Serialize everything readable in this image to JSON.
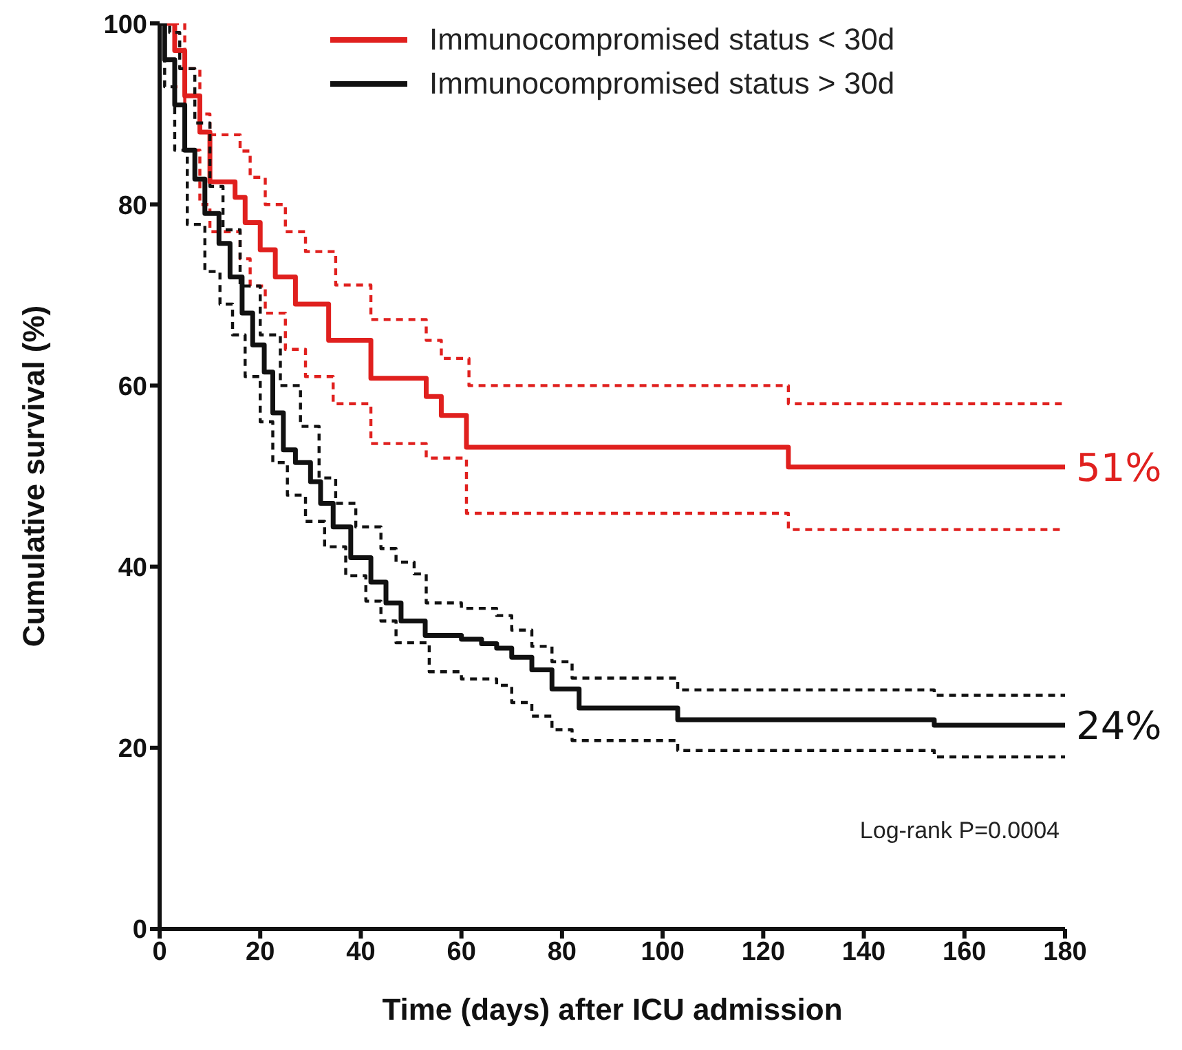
{
  "chart_data": {
    "type": "step",
    "xlabel": "Time (days) after ICU admission",
    "ylabel": "Cumulative survival (%)",
    "xlim": [
      0,
      180
    ],
    "xticks": [
      0,
      20,
      40,
      60,
      80,
      100,
      120,
      140,
      160,
      180
    ],
    "ylim": [
      0,
      100
    ],
    "yticks": [
      0,
      20,
      40,
      60,
      80,
      100
    ],
    "grid": false,
    "legend": "top right",
    "marker": "none",
    "series": [
      {
        "name": "Immunocompromised status < 30d",
        "color": "#e0201e",
        "line_style": "solid",
        "x": [
          0,
          3,
          5,
          8,
          10,
          15,
          17,
          20,
          23,
          27,
          33.6,
          42,
          53,
          56,
          61,
          125,
          180
        ],
        "values": [
          100,
          97,
          92,
          88,
          82.5,
          80.8,
          78,
          75,
          72,
          69,
          65,
          60.8,
          58.8,
          56.7,
          53.2,
          51,
          51
        ]
      },
      {
        "color": "#e0201e",
        "line_style": "dashed",
        "x": [
          0,
          3,
          5,
          8,
          10,
          16,
          18,
          21,
          25,
          29,
          35,
          42,
          53,
          56,
          61.5,
          125,
          180
        ],
        "values": [
          100,
          100,
          95,
          90,
          87.7,
          85.9,
          83,
          80,
          77,
          74.8,
          71.1,
          67.3,
          65,
          63,
          60,
          58,
          58
        ]
      },
      {
        "color": "#e0201e",
        "line_style": "dashed",
        "x": [
          0,
          3,
          5,
          8,
          10,
          16,
          18,
          21,
          25,
          29,
          34.5,
          42,
          53,
          61,
          125,
          180
        ],
        "values": [
          100,
          93,
          86,
          80,
          77,
          74,
          71,
          68,
          64,
          61,
          58,
          53.6,
          52,
          45.9,
          44.1,
          44.1
        ]
      },
      {
        "name": "Immunocompromised status > 30d",
        "color": "#111111",
        "line_style": "solid",
        "x": [
          0,
          1,
          3,
          5,
          7,
          9,
          11.8,
          14,
          16.4,
          18.5,
          20.8,
          22.5,
          24.6,
          27,
          30,
          32,
          34.5,
          38,
          42,
          45,
          48,
          52.8,
          60,
          64,
          67,
          70,
          74,
          78,
          83.4,
          103,
          154,
          180
        ],
        "values": [
          100,
          96,
          91,
          86,
          82.8,
          79,
          75.7,
          72,
          68,
          64.5,
          61.5,
          57,
          52.9,
          51.5,
          49.4,
          47,
          44.4,
          41,
          38.3,
          36,
          34,
          32.4,
          32,
          31.5,
          31,
          30,
          28.6,
          26.5,
          24.4,
          23.1,
          22.5,
          22.5
        ]
      },
      {
        "color": "#111111",
        "line_style": "dashed",
        "x": [
          0,
          2,
          4,
          7,
          10,
          12.6,
          16,
          20,
          24,
          28,
          31.7,
          35,
          39,
          44,
          47,
          50.6,
          53,
          60,
          67,
          70,
          74,
          78,
          82,
          103,
          154,
          180
        ],
        "values": [
          100,
          99,
          95,
          89,
          82,
          77.2,
          71,
          65.6,
          60,
          55.5,
          49.8,
          47,
          44.4,
          42,
          40.5,
          39.2,
          36,
          35.4,
          34.6,
          33,
          31.2,
          29.5,
          27.7,
          26.4,
          25.8,
          25.8
        ]
      },
      {
        "color": "#111111",
        "line_style": "dashed",
        "x": [
          0,
          1,
          3,
          5.5,
          9,
          12,
          14.5,
          17,
          20,
          22.5,
          25.4,
          29,
          32.8,
          37,
          41,
          44,
          47,
          53.6,
          60,
          67,
          70,
          74,
          78,
          82,
          103,
          154,
          180
        ],
        "values": [
          100,
          93,
          86,
          77.8,
          72.6,
          69,
          65.6,
          61,
          56,
          51.5,
          47.9,
          45,
          42.2,
          39,
          36.2,
          34,
          31.6,
          28.4,
          27.6,
          26.9,
          25,
          23.5,
          22,
          20.8,
          19.7,
          19,
          19
        ]
      }
    ],
    "annotations": [
      {
        "text": "51%",
        "x": 180,
        "y": 51
      },
      {
        "text": "24%",
        "x": 180,
        "y": 22.5
      },
      "Log-rank P=0.0004"
    ]
  }
}
